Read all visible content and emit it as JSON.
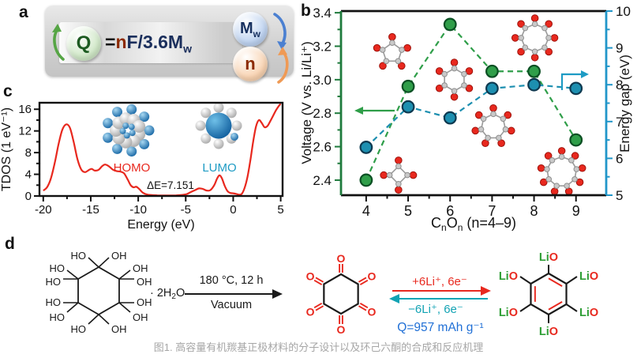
{
  "caption": "图1. 高容量有机羰基正极材料的分子设计以及环己六酮的合成和反应机理",
  "panel_a": {
    "label": "a",
    "q_label": "Q",
    "formula": {
      "eq": "=",
      "n": "n",
      "rest": "F/3.6M",
      "sub": "w"
    },
    "mw_label": "M",
    "mw_sub": "w",
    "n_label": "n",
    "colors": {
      "q_fill": "#cfe7c6",
      "q_text": "#1d5b21",
      "mw_fill": "#bdd2f0",
      "mw_text": "#17305f",
      "n_fill": "#f8d2b0",
      "n_text": "#8c2a00",
      "green_arrow": "#56a545",
      "blue_arrow": "#4b80d1",
      "orange_arrow": "#ef9a55",
      "formula_n": "#8c2a00",
      "formula_navy": "#1b2f5c",
      "formula_eq": "#111111"
    }
  },
  "panel_b": {
    "label": "b"
  },
  "panel_c": {
    "label": "c",
    "homo": "HOMO",
    "lumo": "LUMO",
    "gap_annotation": "ΔE=7.151",
    "homo_color": "#e8281e",
    "lumo_color": "#1d9bc4"
  },
  "panel_d": {
    "label": "d",
    "ho": "HO",
    "oh": "OH",
    "hydrate": {
      "dot": "· ",
      "pre": "2H",
      "sub": "2",
      "post": "O"
    },
    "cond_top": "180 °C, 12 h",
    "cond_bottom": "Vacuum",
    "forward": "+6Li⁺, 6e⁻",
    "backward": "−6Li⁺, 6e⁻",
    "capacity": "Q=957 mAh g⁻¹",
    "o": "O",
    "li": "Li",
    "oli": "OLi",
    "lio": "LiO",
    "colors": {
      "red": "#e8281e",
      "teal": "#12a3b4",
      "blue": "#1f6fd6",
      "li_green": "#2e9e35",
      "black": "#1a1a1a"
    }
  },
  "chart_data": [
    {
      "type": "scatter",
      "panel": "b",
      "x": [
        4,
        5,
        6,
        7,
        8,
        9
      ],
      "series": [
        {
          "name": "Voltage",
          "axis": "left",
          "color": "#2f9e49",
          "edge": "#0a4f23",
          "values": [
            2.4,
            2.96,
            3.33,
            3.05,
            3.05,
            2.64
          ]
        },
        {
          "name": "Energy gap",
          "axis": "right",
          "color": "#1d8fb0",
          "edge": "#0e3950",
          "values": [
            6.3,
            7.4,
            7.1,
            7.9,
            8.0,
            7.9
          ]
        }
      ],
      "xlabel": "CnOn (n=4–9)",
      "xlabel_parts": {
        "c": "C",
        "sub": "n",
        "o": "O",
        "tail": " (n=4–9)"
      },
      "ylabel_left": "Voltage (V vs. Li/Li⁺)",
      "ylabel_right": "Energy gap (eV)",
      "xticks": [
        4,
        5,
        6,
        7,
        8,
        9
      ],
      "yticks_left": [
        2.4,
        2.6,
        2.8,
        3.0,
        3.2,
        3.4
      ],
      "yticks_right": [
        5,
        6,
        7,
        8,
        9,
        10
      ],
      "xlim": [
        3.4,
        9.72
      ],
      "ylim_left": [
        2.31,
        3.41
      ],
      "ylim_right": [
        5,
        10
      ],
      "axis_color_left": "#1e7a3c",
      "axis_color_right": "#2196c9",
      "line_style": "dashed",
      "legend_position": "none",
      "grid": false,
      "molecules": [
        {
          "n": 4,
          "x": 4.77,
          "v": 2.43
        },
        {
          "n": 5,
          "x": 4.62,
          "v": 3.16
        },
        {
          "n": 6,
          "x": 6.1,
          "v": 3.0
        },
        {
          "n": 7,
          "x": 7.03,
          "v": 2.72
        },
        {
          "n": 8,
          "x": 8.02,
          "v": 3.25
        },
        {
          "n": 9,
          "x": 8.66,
          "v": 2.45
        }
      ]
    },
    {
      "type": "line",
      "panel": "c",
      "xlabel": "Energy (eV)",
      "ylabel": "TDOS (1 eV⁻¹)",
      "xlim": [
        -20.4,
        5.2
      ],
      "ylim": [
        0,
        17.2
      ],
      "xticks": [
        -20,
        -15,
        -10,
        -5,
        0,
        5
      ],
      "yticks": [
        0,
        4,
        8,
        12,
        16
      ],
      "color": "#e8281e",
      "grid": false,
      "points": [
        [
          -20,
          1.0
        ],
        [
          -19.6,
          1.6
        ],
        [
          -19.2,
          3.2
        ],
        [
          -18.8,
          6.0
        ],
        [
          -18.4,
          9.5
        ],
        [
          -18.0,
          12.2
        ],
        [
          -17.6,
          13.2
        ],
        [
          -17.2,
          12.6
        ],
        [
          -16.8,
          10.0
        ],
        [
          -16.4,
          6.8
        ],
        [
          -16.0,
          4.9
        ],
        [
          -15.6,
          4.4
        ],
        [
          -15.2,
          4.8
        ],
        [
          -14.9,
          5.0
        ],
        [
          -14.6,
          4.7
        ],
        [
          -14.2,
          4.8
        ],
        [
          -13.8,
          5.5
        ],
        [
          -13.5,
          5.8
        ],
        [
          -13.1,
          5.5
        ],
        [
          -12.7,
          4.9
        ],
        [
          -12.3,
          4.6
        ],
        [
          -11.9,
          4.5
        ],
        [
          -11.5,
          4.2
        ],
        [
          -11.1,
          3.0
        ],
        [
          -10.8,
          2.0
        ],
        [
          -10.5,
          1.6
        ],
        [
          -10.2,
          1.7
        ],
        [
          -9.9,
          1.3
        ],
        [
          -9.5,
          0.6
        ],
        [
          -9.0,
          0.25
        ],
        [
          -8.0,
          0.12
        ],
        [
          -7.0,
          0.1
        ],
        [
          -6.0,
          0.12
        ],
        [
          -5.0,
          0.3
        ],
        [
          -4.5,
          0.7
        ],
        [
          -4.0,
          1.1
        ],
        [
          -3.6,
          1.4
        ],
        [
          -3.2,
          1.3
        ],
        [
          -2.8,
          1.0
        ],
        [
          -2.4,
          1.1
        ],
        [
          -2.0,
          2.0
        ],
        [
          -1.7,
          3.2
        ],
        [
          -1.45,
          3.8
        ],
        [
          -1.2,
          3.3
        ],
        [
          -0.9,
          1.9
        ],
        [
          -0.6,
          0.9
        ],
        [
          -0.3,
          0.55
        ],
        [
          0.0,
          0.5
        ],
        [
          0.3,
          0.4
        ],
        [
          0.6,
          0.25
        ],
        [
          0.9,
          0.4
        ],
        [
          1.2,
          1.5
        ],
        [
          1.5,
          3.5
        ],
        [
          1.8,
          6.5
        ],
        [
          2.1,
          10.0
        ],
        [
          2.4,
          12.8
        ],
        [
          2.7,
          14.0
        ],
        [
          3.0,
          13.5
        ],
        [
          3.3,
          12.7
        ],
        [
          3.6,
          12.9
        ],
        [
          3.9,
          13.8
        ],
        [
          4.2,
          14.8
        ],
        [
          4.5,
          15.8
        ],
        [
          4.8,
          16.6
        ],
        [
          5.0,
          17.0
        ]
      ]
    }
  ]
}
